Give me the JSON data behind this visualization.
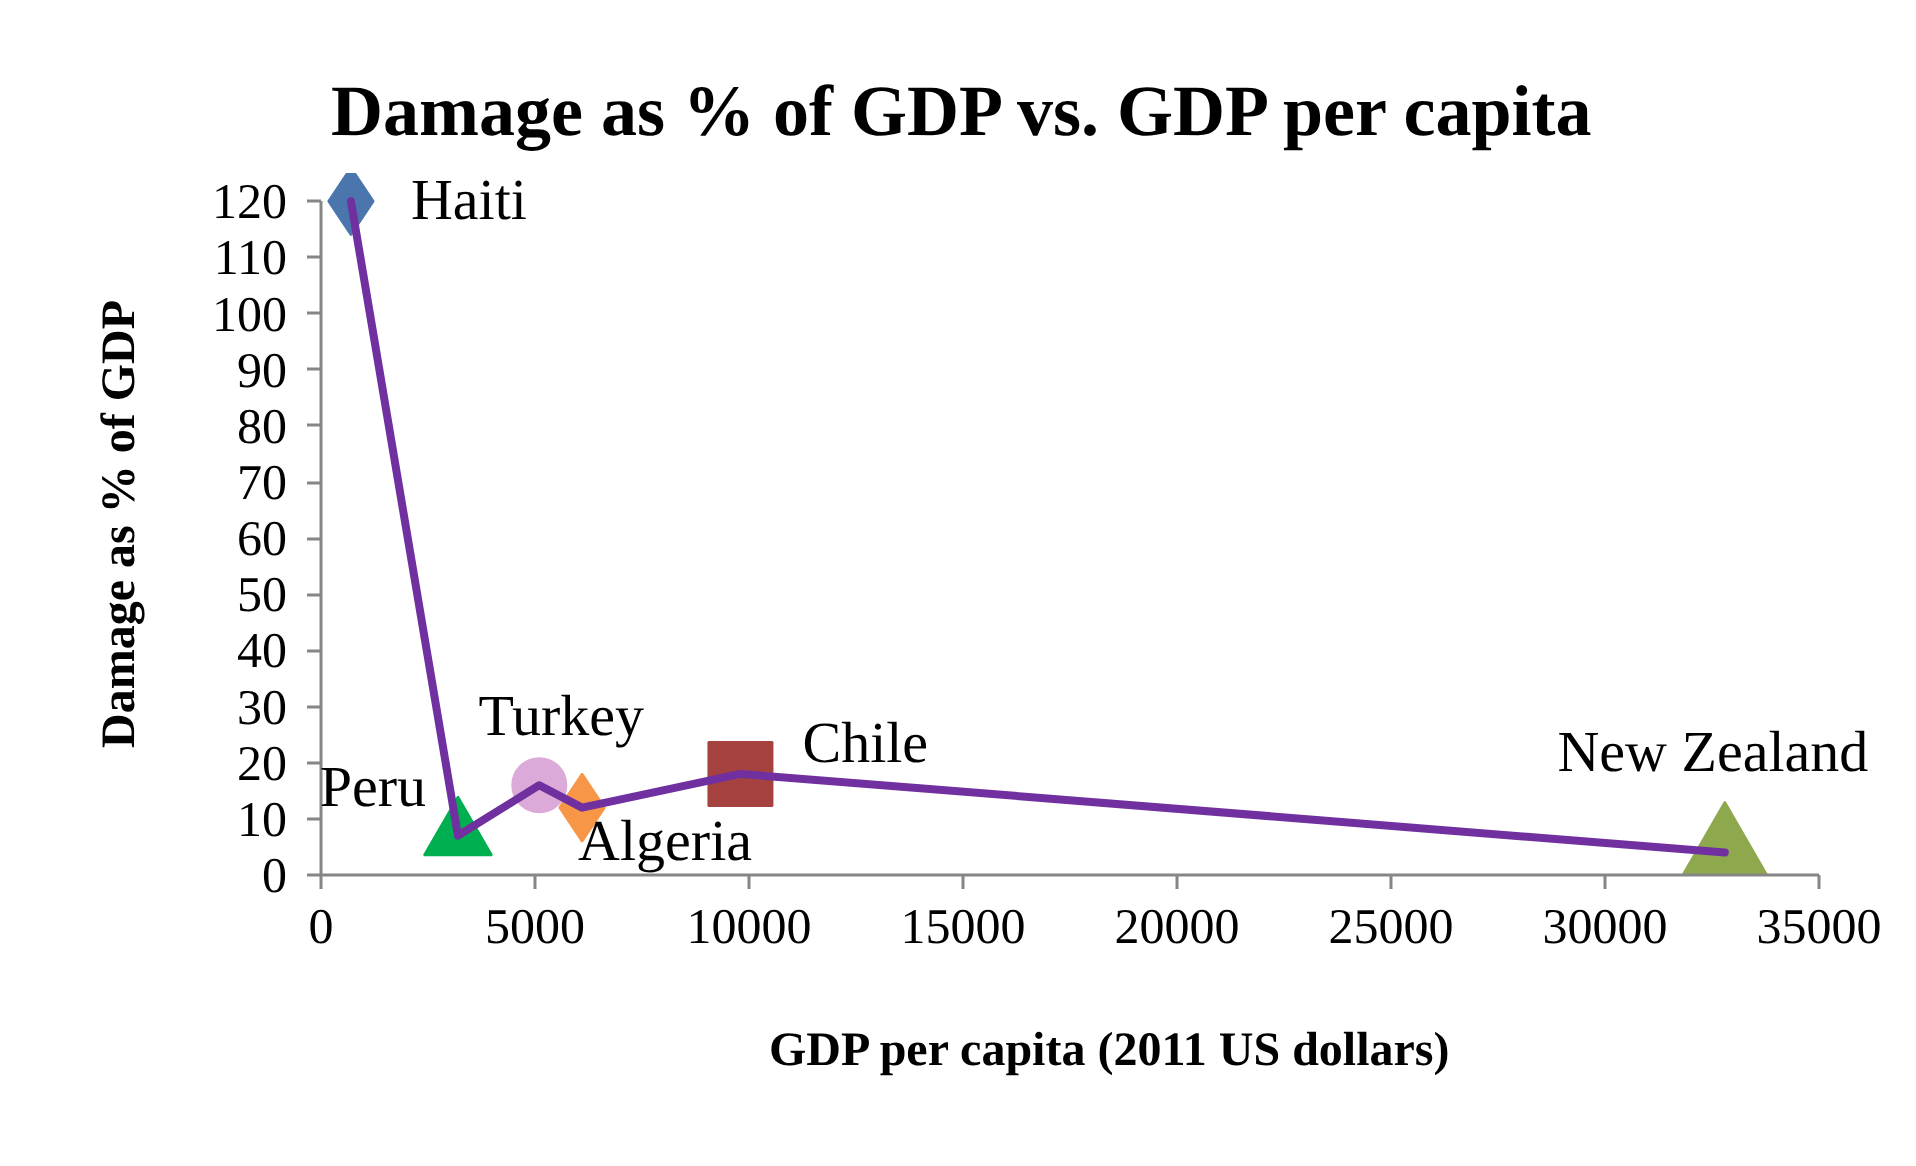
{
  "chart_data": {
    "type": "scatter",
    "title": "Damage as % of GDP vs. GDP per capita",
    "xlabel": "GDP per capita (2011 US dollars)",
    "ylabel": "Damage as % of GDP",
    "xlim": [
      0,
      35000
    ],
    "ylim": [
      0,
      120
    ],
    "xticks": [
      0,
      5000,
      10000,
      15000,
      20000,
      25000,
      30000,
      35000
    ],
    "yticks": [
      0,
      10,
      20,
      30,
      40,
      50,
      60,
      70,
      80,
      90,
      100,
      110,
      120
    ],
    "grid": false,
    "series": [
      {
        "name": "Haiti",
        "x": [
          700
        ],
        "values": [
          120
        ],
        "color": "#4a76ad",
        "marker": "diamond"
      },
      {
        "name": "Peru",
        "x": [
          3200
        ],
        "values": [
          7
        ],
        "color": "#00b050",
        "marker": "triangle"
      },
      {
        "name": "Turkey",
        "x": [
          5100
        ],
        "values": [
          16
        ],
        "color": "#dcaad8",
        "marker": "circle"
      },
      {
        "name": "Algeria",
        "x": [
          6100
        ],
        "values": [
          12
        ],
        "color": "#f79646",
        "marker": "diamond"
      },
      {
        "name": "Chile",
        "x": [
          9800
        ],
        "values": [
          18
        ],
        "color": "#a5423f",
        "marker": "square"
      },
      {
        "name": "New Zealand",
        "x": [
          32800
        ],
        "values": [
          4
        ],
        "color": "#8ea84e",
        "marker": "triangle"
      },
      {
        "type": "line",
        "color": "#7030a0",
        "x": [
          700,
          3200,
          5100,
          6100,
          9800,
          32800
        ],
        "values": [
          120,
          7,
          16,
          12,
          18,
          4
        ],
        "line_style": "solid"
      }
    ]
  }
}
